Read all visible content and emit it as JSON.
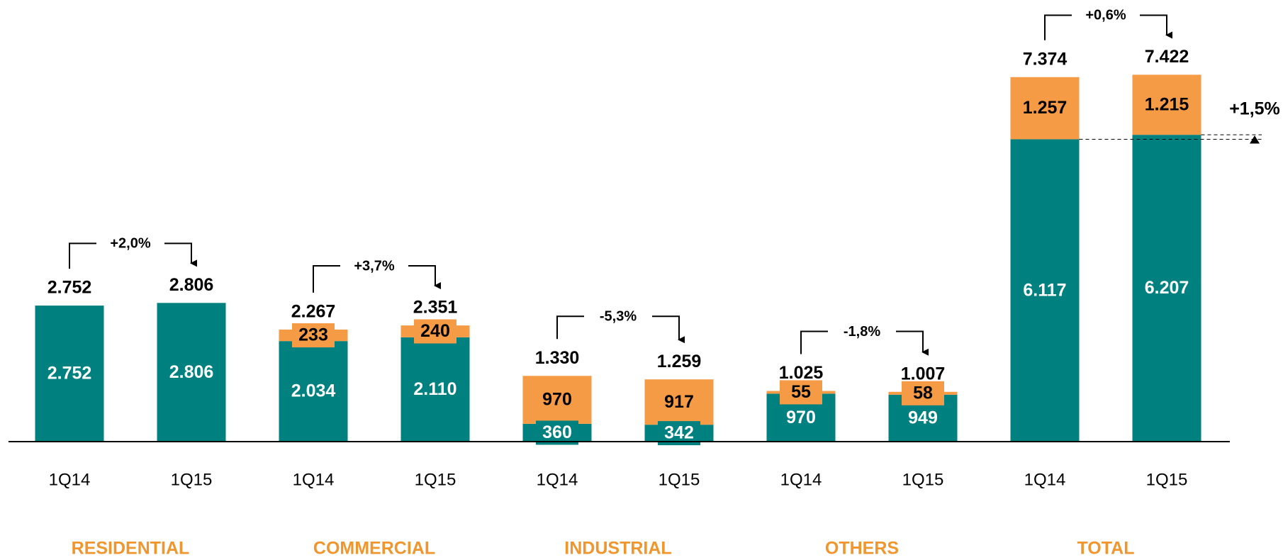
{
  "chart_data": {
    "type": "stacked_bar",
    "categories": [
      "1Q14",
      "1Q15",
      "1Q14",
      "1Q15",
      "1Q14",
      "1Q15",
      "1Q14",
      "1Q15",
      "1Q14",
      "1Q15"
    ],
    "groups": [
      "RESIDENTIAL",
      "COMMERCIAL",
      "INDUSTRIAL",
      "OTHERS",
      "TOTAL"
    ],
    "group_changes": [
      "+2,0%",
      "+3,7%",
      "-5,3%",
      "-1,8%",
      "+0,6%"
    ],
    "annotations": [
      "+1,5%"
    ],
    "series": [
      {
        "color": "#00807f",
        "values": [
          2752,
          2806,
          2034,
          2110,
          360,
          342,
          970,
          949,
          6117,
          6207
        ],
        "value_labels": [
          "2.752",
          "2.806",
          "2.034",
          "2.110",
          "360",
          "342",
          "970",
          "949",
          "6.117",
          "6.207"
        ]
      },
      {
        "color": "#f59a45",
        "values": [
          0,
          0,
          233,
          240,
          970,
          917,
          55,
          58,
          1257,
          1215
        ],
        "value_labels": [
          null,
          null,
          "233",
          "240",
          "970",
          "917",
          "55",
          "58",
          "1.257",
          "1.215"
        ]
      }
    ],
    "totals": {
      "values": [
        2752,
        2806,
        2267,
        2351,
        1330,
        1259,
        1025,
        1007,
        7374,
        7422
      ],
      "value_labels": [
        "2.752",
        "2.806",
        "2.267",
        "2.351",
        "1.330",
        "1.259",
        "1.025",
        "1.007",
        "7.374",
        "7.422"
      ]
    },
    "ylim": [
      0,
      7500
    ]
  }
}
